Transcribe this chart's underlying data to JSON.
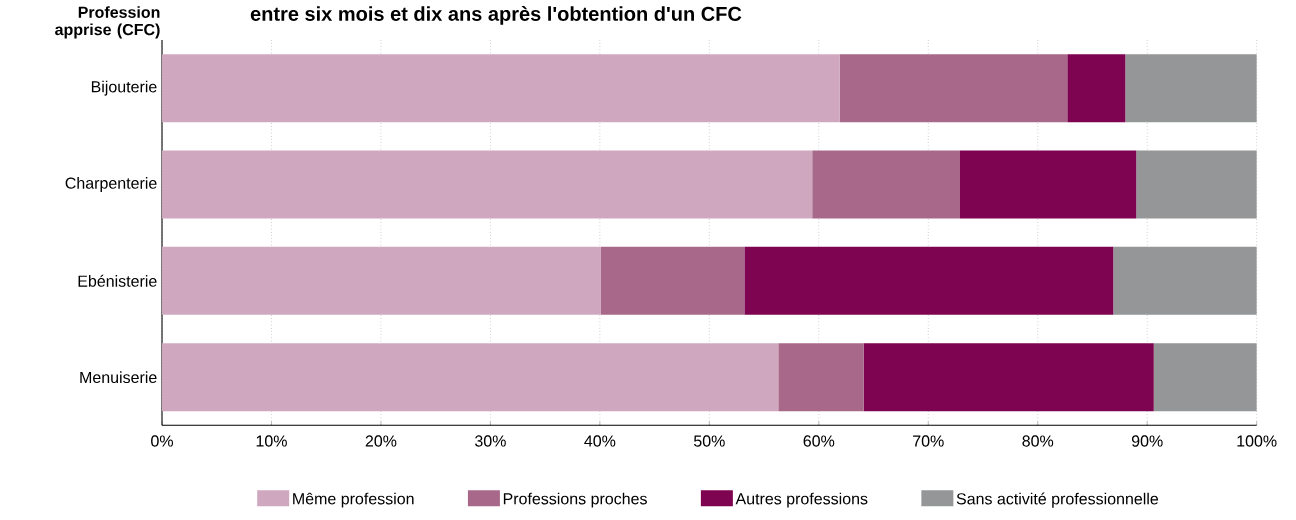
{
  "chart_data": {
    "type": "bar",
    "orientation": "horizontal",
    "stacked": true,
    "title": "entre six mois et dix ans après l'obtention d'un CFC",
    "ylabel": "Profession apprise (CFC)",
    "categories": [
      "Bijouterie",
      "Charpenterie",
      "Ebénisterie",
      "Menuiserie"
    ],
    "series": [
      {
        "name": "Même profession",
        "color": "#cfa8c0",
        "values": [
          61.9,
          59.4,
          40.1,
          56.3
        ]
      },
      {
        "name": "Professions proches",
        "color": "#a76889",
        "values": [
          20.8,
          13.5,
          13.1,
          7.8
        ]
      },
      {
        "name": "Autres professions",
        "color": "#7e0350",
        "values": [
          5.3,
          16.1,
          33.7,
          26.5
        ]
      },
      {
        "name": "Sans activité professionnelle",
        "color": "#959697",
        "values": [
          12.0,
          11.0,
          13.1,
          9.4
        ]
      }
    ],
    "xlim": [
      0,
      100
    ],
    "xticks": [
      {
        "value": 0,
        "label": "0%"
      },
      {
        "value": 10,
        "label": "10%"
      },
      {
        "value": 20,
        "label": "20%"
      },
      {
        "value": 30,
        "label": "30%"
      },
      {
        "value": 40,
        "label": "40%"
      },
      {
        "value": 50,
        "label": "50%"
      },
      {
        "value": 60,
        "label": "60%"
      },
      {
        "value": 70,
        "label": "70%"
      },
      {
        "value": 80,
        "label": "80%"
      },
      {
        "value": 90,
        "label": "90%"
      },
      {
        "value": 100,
        "label": "100%"
      }
    ],
    "grid": "x",
    "legend": "bottom"
  }
}
